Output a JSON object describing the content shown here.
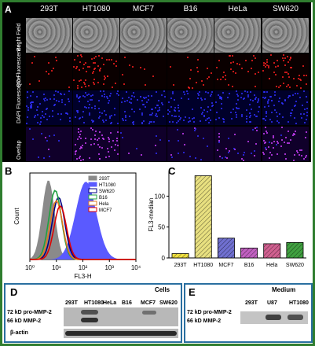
{
  "figure": {
    "panel_labels": {
      "a": "A",
      "b": "B",
      "c": "C",
      "d": "D",
      "e": "E"
    },
    "panel_a": {
      "columns": [
        "293T",
        "HT1080",
        "MCF7",
        "B16",
        "HeLa",
        "SW620"
      ],
      "rows": [
        "Bright Field",
        "QD Fluorescence",
        "DAPI Fluorescence",
        "Overlap"
      ],
      "colors": {
        "qd": "#ff2020",
        "dapi": "#3030ff",
        "overlap": "#d040ff"
      }
    },
    "panel_d": {
      "title": "Cells",
      "lanes": [
        "293T",
        "HT1080",
        "HeLa",
        "B16",
        "MCF7",
        "SW620"
      ],
      "bands": [
        "72 kD pro-MMP-2",
        "66 kD MMP-2",
        "β-actin"
      ]
    },
    "panel_e": {
      "title": "Medium",
      "lanes": [
        "293T",
        "U87",
        "HT1080"
      ],
      "bands": [
        "72 kD pro-MMP-2",
        "66 kD MMP-2"
      ]
    }
  },
  "chart_data": [
    {
      "type": "line",
      "panel": "B",
      "xlabel": "FL3-H",
      "ylabel": "Count",
      "x_scale": "log",
      "xlim": [
        1,
        10000
      ],
      "x_ticks": [
        "10⁰",
        "10¹",
        "10²",
        "10³",
        "10⁴"
      ],
      "legend": [
        "293T",
        "HT1080",
        "SW620",
        "B16",
        "Hela",
        "MCF7"
      ],
      "legend_position": "top-right",
      "series": [
        {
          "name": "293T",
          "color": "#8a8a8a",
          "filled": true,
          "peak_x": 5,
          "peak_y": 0.92
        },
        {
          "name": "HT1080",
          "color": "#5a5aff",
          "filled": true,
          "peak_x": 130,
          "peak_y": 0.9
        },
        {
          "name": "SW620",
          "color": "#000080",
          "filled": false,
          "peak_x": 12,
          "peak_y": 0.72
        },
        {
          "name": "B16",
          "color": "#20a040",
          "filled": false,
          "peak_x": 9,
          "peak_y": 0.8
        },
        {
          "name": "Hela",
          "color": "#e07820",
          "filled": false,
          "peak_x": 10,
          "peak_y": 0.68
        },
        {
          "name": "MCF7",
          "color": "#e00000",
          "filled": false,
          "peak_x": 14,
          "peak_y": 0.62
        }
      ]
    },
    {
      "type": "bar",
      "panel": "C",
      "ylabel": "FL3-median",
      "categories": [
        "293T",
        "HT1080",
        "MCF7",
        "B16",
        "Hela",
        "SW620"
      ],
      "values": [
        7,
        133,
        32,
        16,
        23,
        25
      ],
      "ylim": [
        0,
        140
      ],
      "y_ticks": [
        0,
        50,
        100
      ],
      "colors": [
        "#f0e040",
        "#e8e080",
        "#7070d0",
        "#c060c0",
        "#d06090",
        "#40a040"
      ],
      "hatch": true
    }
  ]
}
